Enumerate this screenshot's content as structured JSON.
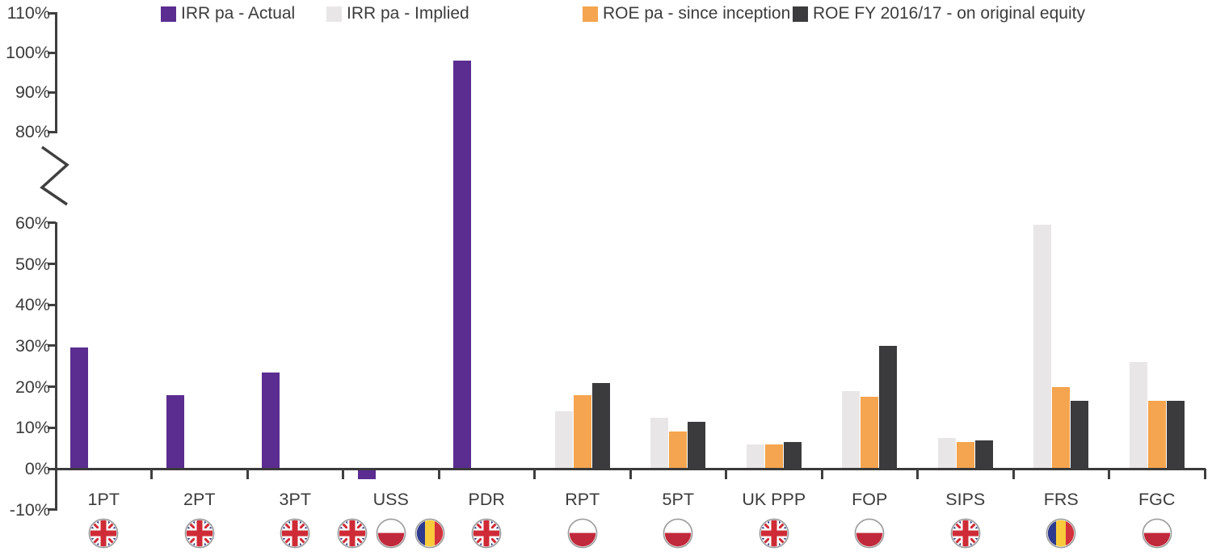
{
  "legend": [
    {
      "label": "IRR pa - Actual",
      "color": "#5B2D90"
    },
    {
      "label": "IRR pa - Implied",
      "color": "#E8E6E7"
    },
    {
      "label": "ROE pa - since inception",
      "color": "#F5A44F"
    },
    {
      "label": "ROE FY 2016/17 - on original equity",
      "color": "#3B3A3C"
    }
  ],
  "chart_data": {
    "type": "bar",
    "title": "",
    "xlabel": "",
    "ylabel": "",
    "categories": [
      "1PT",
      "2PT",
      "3PT",
      "USS",
      "PDR",
      "RPT",
      "5PT",
      "UK PPP",
      "FOP",
      "SIPS",
      "FRS",
      "FGC"
    ],
    "category_flags": [
      [
        "uk"
      ],
      [
        "uk"
      ],
      [
        "uk"
      ],
      [
        "uk",
        "pl",
        "ro"
      ],
      [
        "uk"
      ],
      [
        "pl"
      ],
      [
        "pl"
      ],
      [
        "uk"
      ],
      [
        "pl"
      ],
      [
        "uk"
      ],
      [
        "ro"
      ],
      [
        "pl"
      ]
    ],
    "series": [
      {
        "name": "IRR pa - Actual",
        "color": "#5B2D90",
        "values": [
          29.5,
          18,
          23.5,
          -2.5,
          98,
          null,
          null,
          null,
          null,
          null,
          null,
          null
        ]
      },
      {
        "name": "IRR pa - Implied",
        "color": "#E8E6E7",
        "values": [
          null,
          null,
          null,
          null,
          null,
          14,
          12.5,
          6,
          19,
          7.5,
          59.5,
          26
        ]
      },
      {
        "name": "ROE pa - since inception",
        "color": "#F5A44F",
        "values": [
          null,
          null,
          null,
          null,
          null,
          18,
          9,
          6,
          17.5,
          6.5,
          20,
          16.5
        ]
      },
      {
        "name": "ROE FY 2016/17 - on original equity",
        "color": "#3B3A3C",
        "values": [
          null,
          null,
          null,
          null,
          null,
          21,
          11.5,
          6.5,
          30,
          7,
          16.5,
          16.5
        ]
      }
    ],
    "y_axis": {
      "unit": "%",
      "has_break": true,
      "lower_range": [
        -10,
        60
      ],
      "upper_range": [
        80,
        110
      ],
      "lower_tick_values": [
        60,
        50,
        40,
        30,
        20,
        10,
        0,
        -10
      ],
      "upper_tick_values": [
        110,
        100,
        90,
        80
      ],
      "lower_tick_labels": [
        "60%",
        "50%",
        "40%",
        "30%",
        "20%",
        "10%",
        "0%",
        "-10%"
      ],
      "upper_tick_labels": [
        "110%",
        "100%",
        "90%",
        "80%"
      ]
    },
    "grid": false,
    "legend_position": "top",
    "flag_colors": {
      "uk_navy": "#29337E",
      "uk_red": "#CE2B36",
      "pl_white": "#FFFFFF",
      "pl_red": "#C0293B",
      "ro_blue": "#2D3A8E",
      "ro_yellow": "#F9CB3C",
      "ro_red": "#D2323C",
      "ring": "#9B9B9B"
    },
    "axis_color": "#3F3F3F"
  }
}
